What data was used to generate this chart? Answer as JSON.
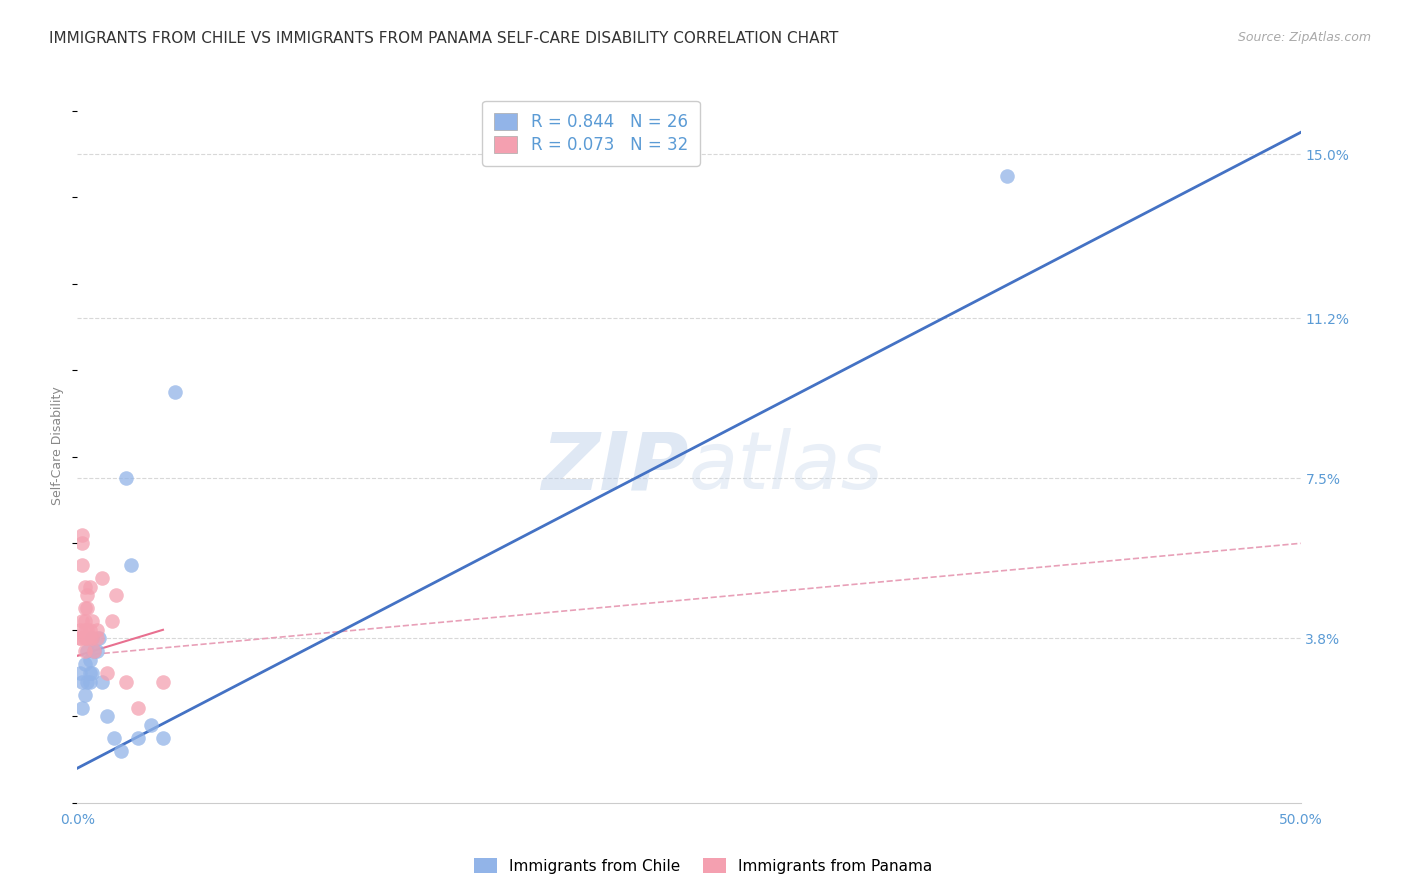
{
  "title": "IMMIGRANTS FROM CHILE VS IMMIGRANTS FROM PANAMA SELF-CARE DISABILITY CORRELATION CHART",
  "source": "Source: ZipAtlas.com",
  "ylabel": "Self-Care Disability",
  "xlim": [
    0.0,
    0.5
  ],
  "ylim": [
    0.0,
    0.165
  ],
  "xticks": [
    0.0,
    0.1,
    0.2,
    0.3,
    0.4,
    0.5
  ],
  "xtick_labels": [
    "0.0%",
    "",
    "",
    "",
    "",
    "50.0%"
  ],
  "yticks_right": [
    0.15,
    0.112,
    0.075,
    0.038
  ],
  "ytick_labels_right": [
    "15.0%",
    "11.2%",
    "7.5%",
    "3.8%"
  ],
  "chile_color": "#92b4e8",
  "panama_color": "#f4a0b0",
  "legend_R_chile": "R = 0.844",
  "legend_N_chile": "N = 26",
  "legend_R_panama": "R = 0.073",
  "legend_N_panama": "N = 32",
  "watermark_zip": "ZIP",
  "watermark_atlas": "atlas",
  "background_color": "#ffffff",
  "grid_color": "#d8d8d8",
  "axis_label_color": "#5b9bd5",
  "chile_line_color": "#4472c4",
  "panama_line_color": "#e87090",
  "panama_dash_color": "#e8a0b8",
  "chile_scatter": [
    [
      0.001,
      0.03
    ],
    [
      0.002,
      0.028
    ],
    [
      0.002,
      0.022
    ],
    [
      0.003,
      0.032
    ],
    [
      0.003,
      0.025
    ],
    [
      0.004,
      0.035
    ],
    [
      0.004,
      0.028
    ],
    [
      0.005,
      0.03
    ],
    [
      0.005,
      0.033
    ],
    [
      0.005,
      0.028
    ],
    [
      0.006,
      0.038
    ],
    [
      0.006,
      0.03
    ],
    [
      0.007,
      0.035
    ],
    [
      0.008,
      0.035
    ],
    [
      0.009,
      0.038
    ],
    [
      0.01,
      0.028
    ],
    [
      0.012,
      0.02
    ],
    [
      0.015,
      0.015
    ],
    [
      0.018,
      0.012
    ],
    [
      0.02,
      0.075
    ],
    [
      0.022,
      0.055
    ],
    [
      0.025,
      0.015
    ],
    [
      0.03,
      0.018
    ],
    [
      0.035,
      0.015
    ],
    [
      0.04,
      0.095
    ],
    [
      0.38,
      0.145
    ]
  ],
  "panama_scatter": [
    [
      0.001,
      0.038
    ],
    [
      0.001,
      0.04
    ],
    [
      0.001,
      0.038
    ],
    [
      0.002,
      0.06
    ],
    [
      0.002,
      0.062
    ],
    [
      0.002,
      0.042
    ],
    [
      0.002,
      0.055
    ],
    [
      0.003,
      0.038
    ],
    [
      0.003,
      0.04
    ],
    [
      0.003,
      0.045
    ],
    [
      0.003,
      0.05
    ],
    [
      0.003,
      0.042
    ],
    [
      0.003,
      0.035
    ],
    [
      0.004,
      0.038
    ],
    [
      0.004,
      0.04
    ],
    [
      0.004,
      0.045
    ],
    [
      0.004,
      0.048
    ],
    [
      0.005,
      0.038
    ],
    [
      0.005,
      0.04
    ],
    [
      0.005,
      0.05
    ],
    [
      0.006,
      0.038
    ],
    [
      0.006,
      0.042
    ],
    [
      0.007,
      0.035
    ],
    [
      0.008,
      0.038
    ],
    [
      0.008,
      0.04
    ],
    [
      0.01,
      0.052
    ],
    [
      0.012,
      0.03
    ],
    [
      0.014,
      0.042
    ],
    [
      0.016,
      0.048
    ],
    [
      0.02,
      0.028
    ],
    [
      0.025,
      0.022
    ],
    [
      0.035,
      0.028
    ]
  ],
  "chile_line_x": [
    0.0,
    0.5
  ],
  "chile_line_y": [
    0.008,
    0.155
  ],
  "panama_solid_line_x": [
    0.0,
    0.035
  ],
  "panama_solid_line_y": [
    0.034,
    0.04
  ],
  "panama_dash_line_x": [
    0.0,
    0.5
  ],
  "panama_dash_line_y": [
    0.034,
    0.06
  ],
  "title_fontsize": 11,
  "source_fontsize": 9,
  "tick_fontsize": 10,
  "label_fontsize": 9
}
